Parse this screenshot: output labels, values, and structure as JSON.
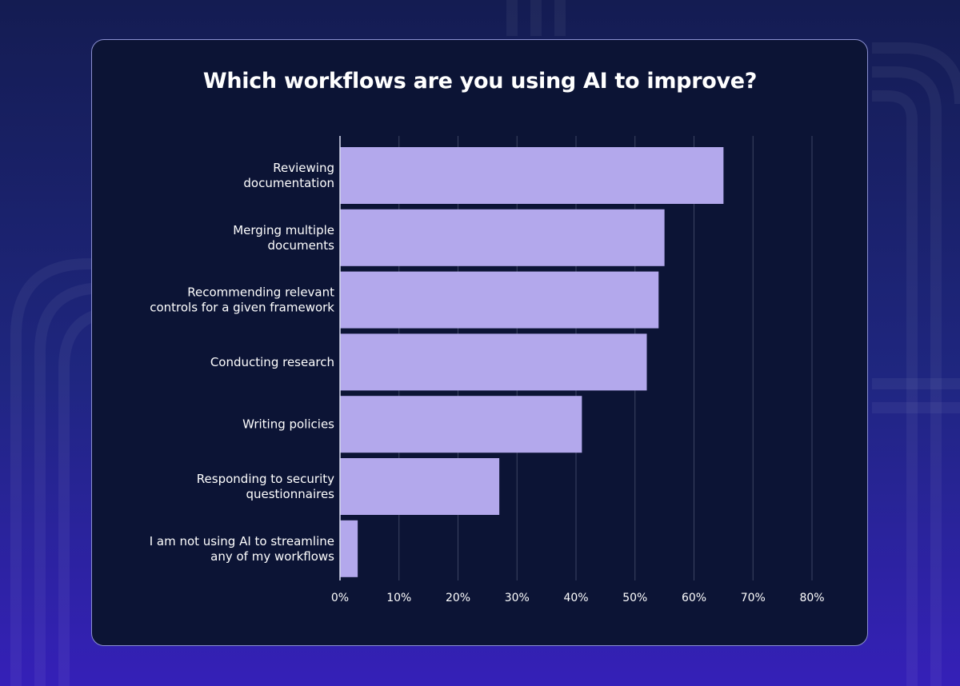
{
  "colors": {
    "bar": "#b3a8ec",
    "card_background": "#0c1435",
    "grid": "#3c4563",
    "text": "#ffffff"
  },
  "chart_data": {
    "type": "bar",
    "orientation": "horizontal",
    "title": "Which workflows are you using AI to improve?",
    "categories": [
      [
        "Reviewing",
        "documentation"
      ],
      [
        "Merging multiple",
        "documents"
      ],
      [
        "Recommending relevant",
        "controls for a given framework"
      ],
      [
        "Conducting research"
      ],
      [
        "Writing policies"
      ],
      [
        "Responding to security",
        "questionnaires"
      ],
      [
        "I am not using AI to streamline",
        "any of my workflows"
      ]
    ],
    "values": [
      65,
      55,
      54,
      52,
      41,
      27,
      3
    ],
    "xlim": [
      0,
      80
    ],
    "x_ticks": [
      "0%",
      "10%",
      "20%",
      "30%",
      "40%",
      "50%",
      "60%",
      "70%",
      "80%"
    ],
    "grid": true,
    "legend": "none"
  }
}
